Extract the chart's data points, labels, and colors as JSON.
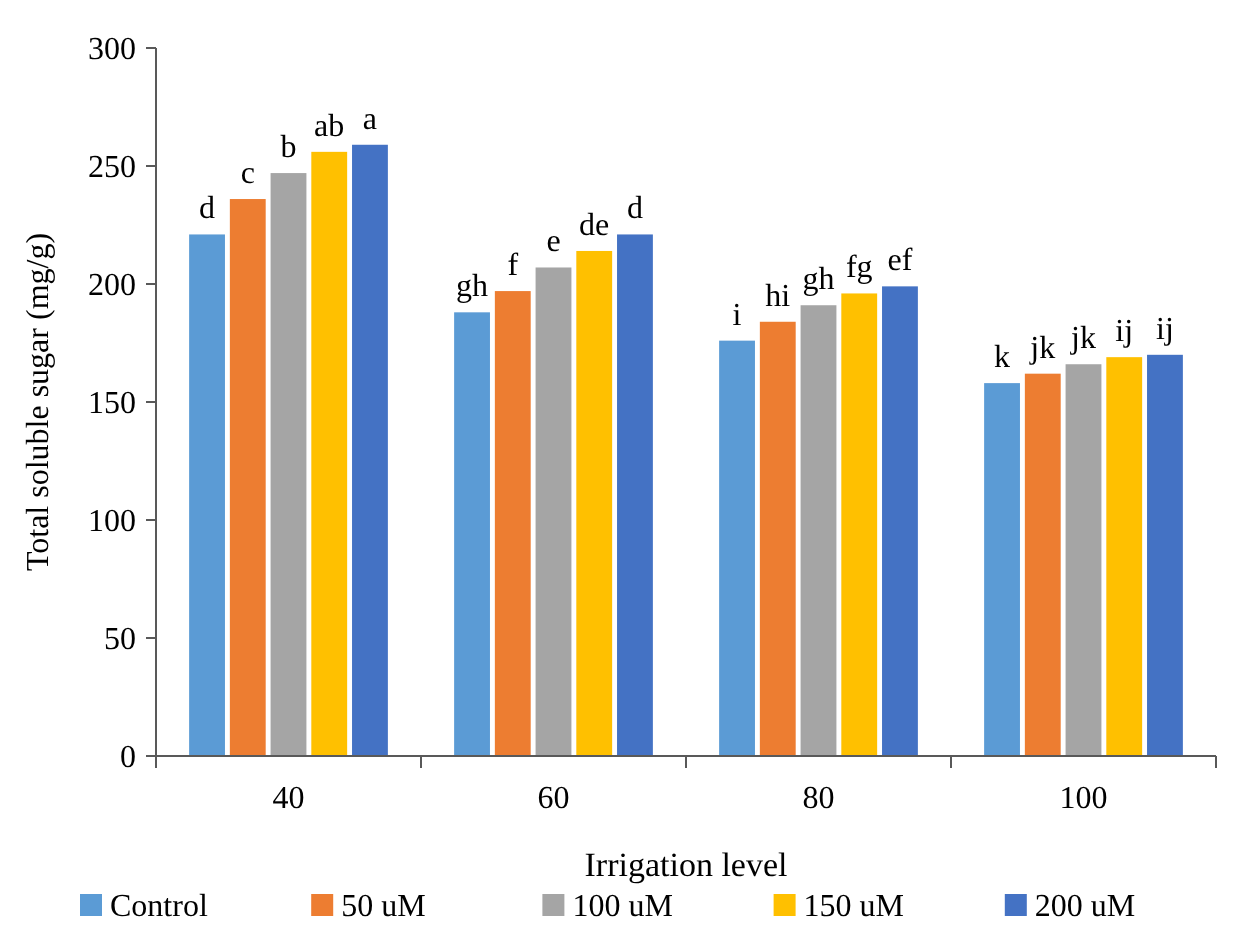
{
  "chart_data": {
    "type": "bar",
    "xlabel": "Irrigation level",
    "ylabel": "Total soluble sugar (mg/g)",
    "categories": [
      "40",
      "60",
      "80",
      "100"
    ],
    "ylim": [
      0,
      300
    ],
    "yticks": [
      0,
      50,
      100,
      150,
      200,
      250,
      300
    ],
    "grid": false,
    "legend": "bottom",
    "series": [
      {
        "name": "Control",
        "color": "#5b9bd5",
        "values": [
          221,
          188,
          176,
          158
        ],
        "value_labels": [
          "d",
          "gh",
          "i",
          "k"
        ]
      },
      {
        "name": "50 uM",
        "color": "#ed7d31",
        "values": [
          236,
          197,
          184,
          162
        ],
        "value_labels": [
          "c",
          "f",
          "hi",
          "jk"
        ]
      },
      {
        "name": "100 uM",
        "color": "#a5a5a5",
        "values": [
          247,
          207,
          191,
          166
        ],
        "value_labels": [
          "b",
          "e",
          "gh",
          "jk"
        ]
      },
      {
        "name": "150 uM",
        "color": "#ffc000",
        "values": [
          256,
          214,
          196,
          169
        ],
        "value_labels": [
          "ab",
          "de",
          "fg",
          "ij"
        ]
      },
      {
        "name": "200 uM",
        "color": "#4472c4",
        "values": [
          259,
          221,
          199,
          170
        ],
        "value_labels": [
          "a",
          "d",
          "ef",
          "ij"
        ]
      }
    ]
  }
}
